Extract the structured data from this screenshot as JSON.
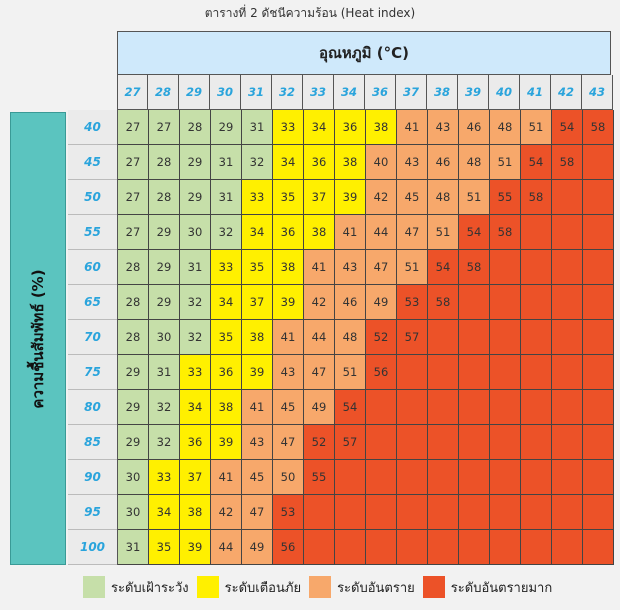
{
  "chart_data": {
    "type": "table",
    "title": "ตารางที่ 2 ดัชนีความร้อน (Heat index)",
    "xlabel": "อุณหภูมิ (°C)",
    "ylabel": "ความชื้นสัมพัทธ์ (%)",
    "columns": [
      "27",
      "28",
      "29",
      "30",
      "31",
      "32",
      "33",
      "34",
      "36",
      "37",
      "38",
      "39",
      "40",
      "41",
      "42",
      "43"
    ],
    "rows": [
      "40",
      "45",
      "50",
      "55",
      "60",
      "65",
      "70",
      "75",
      "80",
      "85",
      "90",
      "95",
      "100"
    ],
    "values": [
      [
        27,
        27,
        28,
        29,
        31,
        33,
        34,
        36,
        38,
        41,
        43,
        46,
        48,
        51,
        54,
        58
      ],
      [
        27,
        28,
        29,
        31,
        32,
        34,
        36,
        38,
        40,
        43,
        46,
        48,
        51,
        54,
        58
      ],
      [
        27,
        28,
        29,
        31,
        33,
        35,
        37,
        39,
        42,
        45,
        48,
        51,
        55,
        58
      ],
      [
        27,
        29,
        30,
        32,
        34,
        36,
        38,
        41,
        44,
        47,
        51,
        54,
        58
      ],
      [
        28,
        29,
        31,
        33,
        35,
        38,
        41,
        43,
        47,
        51,
        54,
        58
      ],
      [
        28,
        29,
        32,
        34,
        37,
        39,
        42,
        46,
        49,
        53,
        58
      ],
      [
        28,
        30,
        32,
        35,
        38,
        41,
        44,
        48,
        52,
        57
      ],
      [
        29,
        31,
        33,
        36,
        39,
        43,
        47,
        51,
        56
      ],
      [
        29,
        32,
        34,
        38,
        41,
        45,
        49,
        54
      ],
      [
        29,
        32,
        36,
        39,
        43,
        47,
        52,
        57
      ],
      [
        30,
        33,
        37,
        41,
        45,
        50,
        55
      ],
      [
        30,
        34,
        38,
        42,
        47,
        53
      ],
      [
        31,
        35,
        39,
        44,
        49,
        56
      ]
    ],
    "levels": [
      {
        "label": "ระดับเฝ้าระวัง",
        "max": 32,
        "color": "#c6dfa9"
      },
      {
        "label": "ระดับเตือนภัย",
        "max": 39,
        "color": "#fff000"
      },
      {
        "label": "ระดับอันตราย",
        "max": 51,
        "color": "#f7a86b"
      },
      {
        "label": "ระดับอันตรายมาก",
        "max": null,
        "color": "#ec5228"
      }
    ]
  }
}
